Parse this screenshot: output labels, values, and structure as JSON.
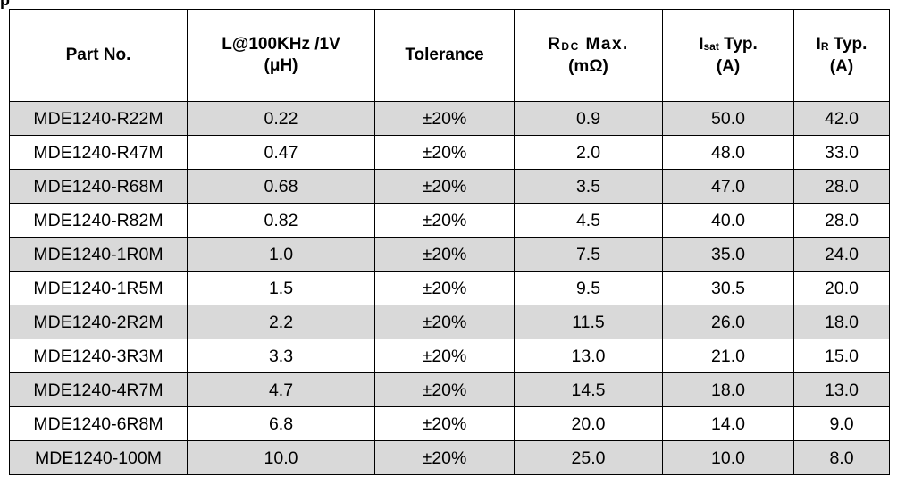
{
  "caption_fragment": "p",
  "table": {
    "headers": [
      {
        "line1": "Part No.",
        "line2": ""
      },
      {
        "line1": "L@100KHz /1V",
        "line2": "(μH)"
      },
      {
        "line1": "Tolerance",
        "line2": ""
      },
      {
        "sym": "R",
        "sub": "DC",
        "rest": " Max.",
        "line2": "(mΩ)"
      },
      {
        "sym": "I",
        "sub": "sat",
        "rest": " Typ.",
        "line2": "(A)"
      },
      {
        "sym": "I",
        "sub": "R",
        "rest": " Typ.",
        "line2": "(A)"
      }
    ],
    "rows": [
      [
        "MDE1240-R22M",
        "0.22",
        "±20%",
        "0.9",
        "50.0",
        "42.0"
      ],
      [
        "MDE1240-R47M",
        "0.47",
        "±20%",
        "2.0",
        "48.0",
        "33.0"
      ],
      [
        "MDE1240-R68M",
        "0.68",
        "±20%",
        "3.5",
        "47.0",
        "28.0"
      ],
      [
        "MDE1240-R82M",
        "0.82",
        "±20%",
        "4.5",
        "40.0",
        "28.0"
      ],
      [
        "MDE1240-1R0M",
        "1.0",
        "±20%",
        "7.5",
        "35.0",
        "24.0"
      ],
      [
        "MDE1240-1R5M",
        "1.5",
        "±20%",
        "9.5",
        "30.5",
        "20.0"
      ],
      [
        "MDE1240-2R2M",
        "2.2",
        "±20%",
        "11.5",
        "26.0",
        "18.0"
      ],
      [
        "MDE1240-3R3M",
        "3.3",
        "±20%",
        "13.0",
        "21.0",
        "15.0"
      ],
      [
        "MDE1240-4R7M",
        "4.7",
        "±20%",
        "14.5",
        "18.0",
        "13.0"
      ],
      [
        "MDE1240-6R8M",
        "6.8",
        "±20%",
        "20.0",
        "14.0",
        "9.0"
      ],
      [
        "MDE1240-100M",
        "10.0",
        "±20%",
        "25.0",
        "10.0",
        "8.0"
      ]
    ]
  }
}
